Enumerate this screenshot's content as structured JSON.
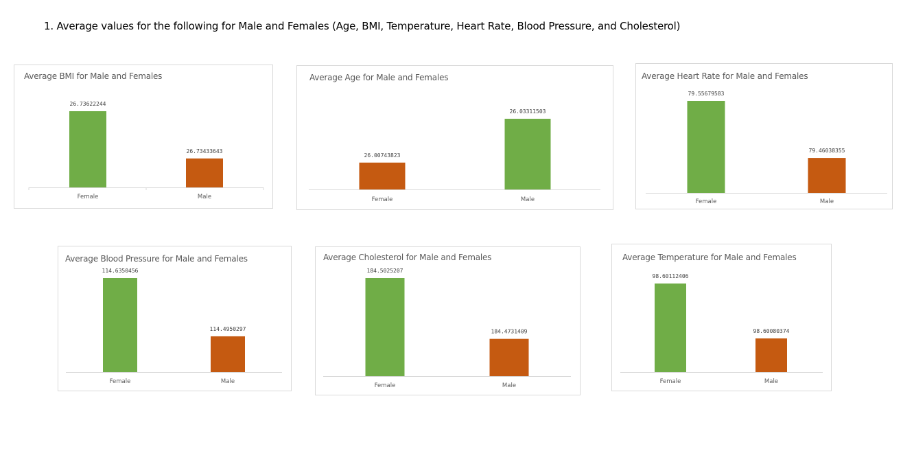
{
  "heading": "1. Average values for the following for Male and Females (Age, BMI, Temperature, Heart Rate, Blood Pressure, and Cholesterol)",
  "colors": {
    "green": "#70ad47",
    "orange": "#c55a11",
    "axis": "#d9d9d9"
  },
  "chart_data": [
    {
      "type": "bar",
      "title": "Average BMI for Male and Females",
      "categories": [
        "Female",
        "Male"
      ],
      "values": [
        26.73622244,
        26.73433643
      ],
      "value_labels": [
        "26.73622244",
        "26.73433643"
      ],
      "bar_colors": [
        "green",
        "orange"
      ],
      "grid": false,
      "legend": "none"
    },
    {
      "type": "bar",
      "title": "Average Age for Male and Females",
      "categories": [
        "Female",
        "Male"
      ],
      "values": [
        26.00743823,
        26.03311503
      ],
      "value_labels": [
        "26.00743823",
        "26.03311503"
      ],
      "bar_colors": [
        "orange",
        "green"
      ],
      "grid": false,
      "legend": "none"
    },
    {
      "type": "bar",
      "title": "Average Heart Rate for Male and Females",
      "categories": [
        "Female",
        "Male"
      ],
      "values": [
        79.55679583,
        79.46038355
      ],
      "value_labels": [
        "79.55679583",
        "79.46038355"
      ],
      "bar_colors": [
        "green",
        "orange"
      ],
      "grid": false,
      "legend": "none"
    },
    {
      "type": "bar",
      "title": "Average Blood Pressure for Male and Females",
      "categories": [
        "Female",
        "Male"
      ],
      "values": [
        114.6350456,
        114.4950297
      ],
      "value_labels": [
        "114.6350456",
        "114.4950297"
      ],
      "bar_colors": [
        "green",
        "orange"
      ],
      "grid": false,
      "legend": "none"
    },
    {
      "type": "bar",
      "title": "Average Cholesterol for Male and Females",
      "categories": [
        "Female",
        "Male"
      ],
      "values": [
        184.5025207,
        184.4731409
      ],
      "value_labels": [
        "184.5025207",
        "184.4731409"
      ],
      "bar_colors": [
        "green",
        "orange"
      ],
      "grid": false,
      "legend": "none"
    },
    {
      "type": "bar",
      "title": "Average Temperature for Male and Females",
      "categories": [
        "Female",
        "Male"
      ],
      "values": [
        98.60112406,
        98.60080374
      ],
      "value_labels": [
        "98.60112406",
        "98.60080374"
      ],
      "bar_colors": [
        "green",
        "orange"
      ],
      "grid": false,
      "legend": "none"
    }
  ]
}
